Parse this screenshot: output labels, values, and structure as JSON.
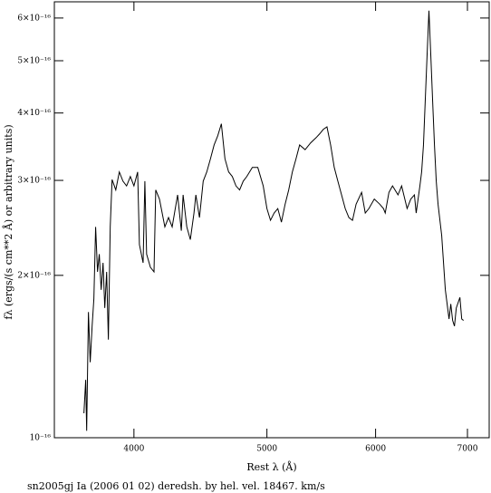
{
  "chart_data": {
    "type": "line",
    "title": "sn2005gj Ia (2006 01 02) deredsh. by hel. vel. 18467. km/s",
    "x_label": "Rest λ (Å)",
    "y_label": "fλ (ergs/(s cm**2 Å) or arbitrary units)",
    "xlog": true,
    "ylog": true,
    "color": "#000000",
    "xlim": [
      3500,
      7260
    ],
    "ylim": [
      1e-16,
      6.43e-16
    ],
    "xticks": [
      4000,
      5000,
      6000,
      7000
    ],
    "yticks": [
      {
        "value": 1e-16,
        "label": "10⁻¹⁶"
      },
      {
        "value": 2e-16,
        "label": "2×10⁻¹⁶"
      },
      {
        "value": 3e-16,
        "label": "3×10⁻¹⁶"
      },
      {
        "value": 4e-16,
        "label": "4×10⁻¹⁶"
      },
      {
        "value": 5e-16,
        "label": "5×10⁻¹⁶"
      },
      {
        "value": 6e-16,
        "label": "6×10⁻¹⁶"
      }
    ],
    "x": [
      3678,
      3689,
      3695,
      3706,
      3717,
      3729,
      3740,
      3751,
      3763,
      3774,
      3786,
      3798,
      3809,
      3821,
      3832,
      3844,
      3856,
      3880,
      3903,
      3927,
      3951,
      3976,
      4000,
      4025,
      4037,
      4062,
      4074,
      4086,
      4112,
      4137,
      4149,
      4175,
      4213,
      4239,
      4265,
      4304,
      4331,
      4344,
      4371,
      4397,
      4424,
      4438,
      4465,
      4493,
      4520,
      4548,
      4576,
      4604,
      4632,
      4660,
      4689,
      4718,
      4747,
      4776,
      4805,
      4834,
      4879,
      4924,
      4969,
      5000,
      5030,
      5061,
      5092,
      5123,
      5155,
      5186,
      5218,
      5250,
      5282,
      5331,
      5380,
      5430,
      5463,
      5496,
      5530,
      5564,
      5598,
      5632,
      5667,
      5702,
      5737,
      5772,
      5807,
      5861,
      5897,
      5933,
      5987,
      6042,
      6080,
      6098,
      6136,
      6173,
      6230,
      6268,
      6326,
      6365,
      6404,
      6423,
      6463,
      6482,
      6502,
      6522,
      6542,
      6562,
      6582,
      6602,
      6623,
      6643,
      6663,
      6704,
      6745,
      6787,
      6807,
      6828,
      6849,
      6870,
      6912,
      6933,
      6954
    ],
    "values": [
      1.11e-16,
      1.28e-16,
      1.03e-16,
      1.71e-16,
      1.38e-16,
      1.61e-16,
      1.81e-16,
      2.46e-16,
      2.03e-16,
      2.19e-16,
      1.88e-16,
      2.11e-16,
      1.74e-16,
      2.03e-16,
      1.52e-16,
      2.46e-16,
      3.01e-16,
      2.88e-16,
      3.11e-16,
      2.99e-16,
      2.93e-16,
      3.05e-16,
      2.93e-16,
      3.11e-16,
      2.28e-16,
      2.11e-16,
      2.99e-16,
      2.19e-16,
      2.07e-16,
      2.03e-16,
      2.88e-16,
      2.77e-16,
      2.46e-16,
      2.56e-16,
      2.46e-16,
      2.82e-16,
      2.42e-16,
      2.82e-16,
      2.46e-16,
      2.33e-16,
      2.61e-16,
      2.82e-16,
      2.56e-16,
      2.99e-16,
      3.11e-16,
      3.29e-16,
      3.49e-16,
      3.63e-16,
      3.82e-16,
      3.29e-16,
      3.11e-16,
      3.05e-16,
      2.93e-16,
      2.88e-16,
      2.99e-16,
      3.05e-16,
      3.17e-16,
      3.17e-16,
      2.93e-16,
      2.66e-16,
      2.53e-16,
      2.61e-16,
      2.66e-16,
      2.51e-16,
      2.71e-16,
      2.88e-16,
      3.11e-16,
      3.29e-16,
      3.49e-16,
      3.42e-16,
      3.52e-16,
      3.6e-16,
      3.66e-16,
      3.73e-16,
      3.77e-16,
      3.49e-16,
      3.17e-16,
      2.99e-16,
      2.82e-16,
      2.66e-16,
      2.56e-16,
      2.53e-16,
      2.71e-16,
      2.85e-16,
      2.61e-16,
      2.66e-16,
      2.77e-16,
      2.71e-16,
      2.66e-16,
      2.61e-16,
      2.85e-16,
      2.93e-16,
      2.82e-16,
      2.93e-16,
      2.66e-16,
      2.77e-16,
      2.82e-16,
      2.61e-16,
      2.93e-16,
      3.11e-16,
      3.49e-16,
      4.24e-16,
      5.14e-16,
      6.19e-16,
      5.14e-16,
      4.24e-16,
      3.49e-16,
      2.99e-16,
      2.71e-16,
      2.37e-16,
      1.88e-16,
      1.66e-16,
      1.77e-16,
      1.65e-16,
      1.61e-16,
      1.74e-16,
      1.82e-16,
      1.66e-16,
      1.65e-16
    ]
  }
}
